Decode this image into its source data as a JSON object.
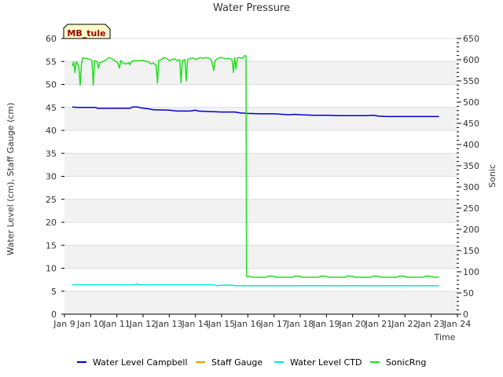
{
  "chart_data": {
    "type": "line",
    "title": "Water Pressure",
    "badge": "MB_tule",
    "xlabel": "Time",
    "ylabel": "Water Level (cm), Staff Gauge (cm)",
    "y2label": "Sonic",
    "xlim": [
      9,
      24
    ],
    "ylim": [
      0,
      60
    ],
    "y2lim": [
      0,
      650
    ],
    "x_ticks": [
      {
        "x": 9,
        "label": "Jan 9"
      },
      {
        "x": 10,
        "label": "Jan 10"
      },
      {
        "x": 11,
        "label": "Jan 11"
      },
      {
        "x": 12,
        "label": "Jan 12"
      },
      {
        "x": 13,
        "label": "Jan 13"
      },
      {
        "x": 14,
        "label": "Jan 14"
      },
      {
        "x": 15,
        "label": "Jan 15"
      },
      {
        "x": 16,
        "label": "Jan 16"
      },
      {
        "x": 17,
        "label": "Jan 17"
      },
      {
        "x": 18,
        "label": "Jan 18"
      },
      {
        "x": 19,
        "label": "Jan 19"
      },
      {
        "x": 20,
        "label": "Jan 20"
      },
      {
        "x": 21,
        "label": "Jan 21"
      },
      {
        "x": 22,
        "label": "Jan 22"
      },
      {
        "x": 23,
        "label": "Jan 23"
      },
      {
        "x": 24,
        "label": "Jan 24"
      }
    ],
    "y_ticks": [
      0,
      5,
      10,
      15,
      20,
      25,
      30,
      35,
      40,
      45,
      50,
      55,
      60
    ],
    "y2_ticks": [
      0,
      50,
      100,
      150,
      200,
      250,
      300,
      350,
      400,
      450,
      500,
      550,
      600,
      650
    ],
    "series": [
      {
        "name": "Water Level Campbell",
        "color": "#0000cc",
        "axis": "y1",
        "points": [
          [
            9.3,
            45.1
          ],
          [
            9.5,
            45.0
          ],
          [
            10.0,
            45.0
          ],
          [
            10.2,
            45.0
          ],
          [
            10.25,
            44.8
          ],
          [
            11.0,
            44.8
          ],
          [
            11.5,
            44.8
          ],
          [
            11.6,
            45.1
          ],
          [
            11.8,
            45.1
          ],
          [
            11.9,
            44.9
          ],
          [
            12.2,
            44.7
          ],
          [
            12.4,
            44.5
          ],
          [
            13.0,
            44.4
          ],
          [
            13.3,
            44.2
          ],
          [
            13.8,
            44.2
          ],
          [
            14.0,
            44.4
          ],
          [
            14.1,
            44.2
          ],
          [
            14.5,
            44.1
          ],
          [
            15.0,
            44.0
          ],
          [
            15.5,
            44.0
          ],
          [
            15.7,
            43.8
          ],
          [
            16.0,
            43.7
          ],
          [
            16.5,
            43.6
          ],
          [
            17.0,
            43.6
          ],
          [
            17.3,
            43.5
          ],
          [
            17.6,
            43.4
          ],
          [
            17.8,
            43.5
          ],
          [
            18.0,
            43.4
          ],
          [
            18.5,
            43.3
          ],
          [
            19.0,
            43.3
          ],
          [
            19.5,
            43.2
          ],
          [
            20.0,
            43.2
          ],
          [
            20.5,
            43.2
          ],
          [
            20.8,
            43.3
          ],
          [
            21.0,
            43.1
          ],
          [
            21.3,
            43.0
          ],
          [
            22.0,
            43.0
          ],
          [
            23.0,
            43.0
          ],
          [
            23.3,
            43.0
          ]
        ]
      },
      {
        "name": "Staff Gauge",
        "color": "#e69f00",
        "axis": "y1",
        "points": []
      },
      {
        "name": "Water Level CTD",
        "color": "#00e5e5",
        "axis": "y1",
        "points": [
          [
            9.3,
            6.4
          ],
          [
            10.0,
            6.4
          ],
          [
            11.0,
            6.4
          ],
          [
            11.7,
            6.4
          ],
          [
            11.75,
            6.6
          ],
          [
            11.85,
            6.4
          ],
          [
            12.5,
            6.4
          ],
          [
            13.0,
            6.4
          ],
          [
            14.0,
            6.4
          ],
          [
            14.7,
            6.4
          ],
          [
            14.8,
            6.2
          ],
          [
            15.0,
            6.3
          ],
          [
            15.4,
            6.3
          ],
          [
            15.5,
            6.2
          ],
          [
            16.0,
            6.2
          ],
          [
            17.0,
            6.2
          ],
          [
            18.0,
            6.2
          ],
          [
            19.0,
            6.2
          ],
          [
            20.0,
            6.2
          ],
          [
            21.0,
            6.2
          ],
          [
            22.0,
            6.2
          ],
          [
            23.0,
            6.2
          ],
          [
            23.3,
            6.2
          ]
        ]
      },
      {
        "name": "SonicRng",
        "color": "#22dd22",
        "axis": "y2",
        "points": [
          [
            9.3,
            585
          ],
          [
            9.35,
            595
          ],
          [
            9.4,
            570
          ],
          [
            9.45,
            595
          ],
          [
            9.5,
            590
          ],
          [
            9.55,
            582
          ],
          [
            9.6,
            540
          ],
          [
            9.65,
            590
          ],
          [
            9.7,
            605
          ],
          [
            9.8,
            603
          ],
          [
            9.9,
            602
          ],
          [
            10.0,
            600
          ],
          [
            10.05,
            598
          ],
          [
            10.1,
            540
          ],
          [
            10.15,
            598
          ],
          [
            10.25,
            595
          ],
          [
            10.3,
            580
          ],
          [
            10.35,
            593
          ],
          [
            10.45,
            595
          ],
          [
            10.55,
            598
          ],
          [
            10.7,
            605
          ],
          [
            10.8,
            603
          ],
          [
            10.9,
            598
          ],
          [
            11.0,
            595
          ],
          [
            11.05,
            590
          ],
          [
            11.1,
            580
          ],
          [
            11.15,
            598
          ],
          [
            11.25,
            592
          ],
          [
            11.35,
            590
          ],
          [
            11.45,
            593
          ],
          [
            11.5,
            588
          ],
          [
            11.55,
            595
          ],
          [
            11.65,
            598
          ],
          [
            11.75,
            597
          ],
          [
            11.85,
            598
          ],
          [
            12.0,
            598
          ],
          [
            12.2,
            595
          ],
          [
            12.3,
            590
          ],
          [
            12.4,
            592
          ],
          [
            12.5,
            586
          ],
          [
            12.55,
            545
          ],
          [
            12.6,
            598
          ],
          [
            12.7,
            600
          ],
          [
            12.8,
            605
          ],
          [
            12.9,
            603
          ],
          [
            13.0,
            598
          ],
          [
            13.1,
            600
          ],
          [
            13.2,
            602
          ],
          [
            13.3,
            598
          ],
          [
            13.4,
            600
          ],
          [
            13.45,
            545
          ],
          [
            13.5,
            598
          ],
          [
            13.6,
            600
          ],
          [
            13.65,
            550
          ],
          [
            13.7,
            600
          ],
          [
            13.8,
            603
          ],
          [
            13.9,
            605
          ],
          [
            14.0,
            600
          ],
          [
            14.1,
            603
          ],
          [
            14.2,
            605
          ],
          [
            14.3,
            603
          ],
          [
            14.4,
            605
          ],
          [
            14.5,
            604
          ],
          [
            14.6,
            600
          ],
          [
            14.7,
            575
          ],
          [
            14.75,
            598
          ],
          [
            14.85,
            603
          ],
          [
            14.95,
            605
          ],
          [
            15.0,
            605
          ],
          [
            15.1,
            603
          ],
          [
            15.2,
            602
          ],
          [
            15.3,
            603
          ],
          [
            15.4,
            600
          ],
          [
            15.45,
            570
          ],
          [
            15.5,
            605
          ],
          [
            15.55,
            578
          ],
          [
            15.6,
            604
          ],
          [
            15.7,
            605
          ],
          [
            15.8,
            603
          ],
          [
            15.85,
            608
          ],
          [
            15.9,
            610
          ],
          [
            15.93,
            608
          ],
          [
            15.95,
            90
          ],
          [
            15.98,
            88
          ],
          [
            16.05,
            90
          ],
          [
            16.1,
            88
          ],
          [
            16.3,
            87
          ],
          [
            16.5,
            87
          ],
          [
            16.7,
            87
          ],
          [
            16.8,
            90
          ],
          [
            17.0,
            89
          ],
          [
            17.1,
            87
          ],
          [
            17.5,
            87
          ],
          [
            17.7,
            87
          ],
          [
            17.8,
            90
          ],
          [
            18.0,
            89
          ],
          [
            18.1,
            87
          ],
          [
            18.5,
            87
          ],
          [
            18.7,
            87
          ],
          [
            18.8,
            90
          ],
          [
            19.0,
            89
          ],
          [
            19.1,
            87
          ],
          [
            19.5,
            87
          ],
          [
            19.7,
            87
          ],
          [
            19.8,
            90
          ],
          [
            20.0,
            89
          ],
          [
            20.1,
            87
          ],
          [
            20.5,
            87
          ],
          [
            20.7,
            87
          ],
          [
            20.8,
            90
          ],
          [
            21.0,
            89
          ],
          [
            21.1,
            87
          ],
          [
            21.5,
            87
          ],
          [
            21.7,
            87
          ],
          [
            21.8,
            90
          ],
          [
            22.0,
            89
          ],
          [
            22.1,
            87
          ],
          [
            22.5,
            87
          ],
          [
            22.7,
            87
          ],
          [
            22.8,
            90
          ],
          [
            23.0,
            89
          ],
          [
            23.1,
            87
          ],
          [
            23.3,
            87
          ]
        ]
      }
    ],
    "legend_position": "bottom"
  }
}
